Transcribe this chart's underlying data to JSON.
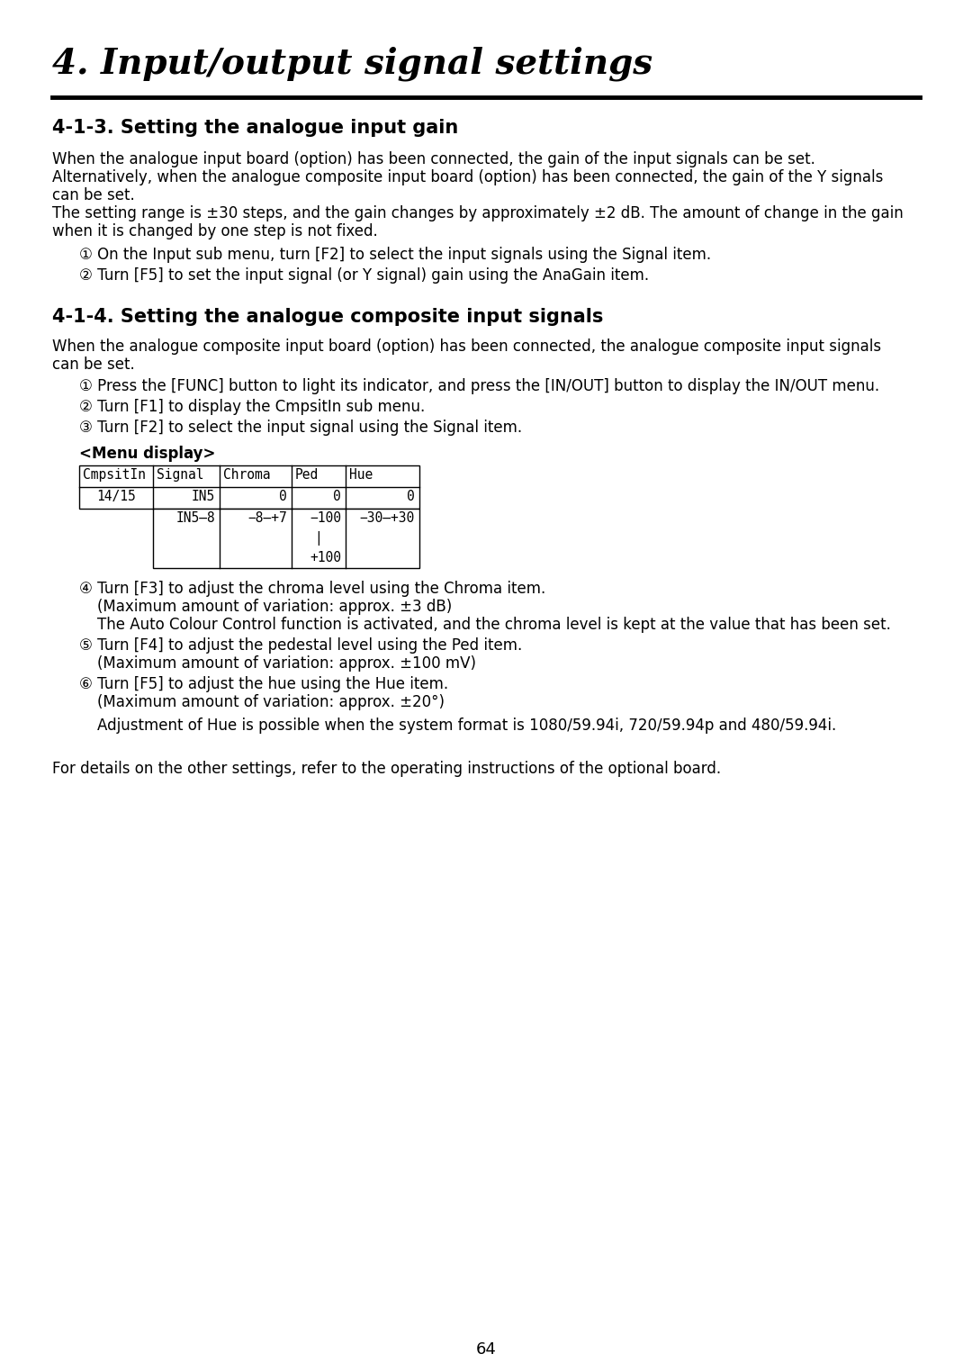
{
  "page_number": "64",
  "chapter_title": "4. Input/output signal settings",
  "background_color": "#ffffff",
  "text_color": "#000000",
  "section1_title": "4-1-3. Setting the analogue input gain",
  "section1_body": [
    "When the analogue input board (option) has been connected, the gain of the input signals can be set.",
    "Alternatively, when the analogue composite input board (option) has been connected, the gain of the Y signals",
    "can be set.",
    "The setting range is ±30 steps, and the gain changes by approximately ±2 dB. The amount of change in the gain",
    "when it is changed by one step is not fixed."
  ],
  "section1_steps": [
    "① On the Input sub menu, turn [F2] to select the input signals using the Signal item.",
    "② Turn [F5] to set the input signal (or Y signal) gain using the AnaGain item."
  ],
  "section2_title": "4-1-4. Setting the analogue composite input signals",
  "section2_body": [
    "When the analogue composite input board (option) has been connected, the analogue composite input signals",
    "can be set."
  ],
  "section2_steps123": [
    "① Press the [FUNC] button to light its indicator, and press the [IN/OUT] button to display the IN/OUT menu.",
    "② Turn [F1] to display the CmpsitIn sub menu.",
    "③ Turn [F2] to select the input signal using the Signal item."
  ],
  "menu_display_label": "<Menu display>",
  "table_headers": [
    "CmpsitIn",
    "Signal",
    "Chroma",
    "Ped",
    "Hue"
  ],
  "table_row2": [
    "14/15",
    "IN5",
    "0",
    "0",
    "0"
  ],
  "sub_table_row1": [
    "IN5–8",
    "−8–+7",
    "−100",
    "−30–+30"
  ],
  "sub_table_middle": [
    "|",
    "+100"
  ],
  "section2_steps456": [
    [
      "④ Turn [F3] to adjust the chroma level using the Chroma item.",
      "(Maximum amount of variation: approx. ±3 dB)",
      "The Auto Colour Control function is activated, and the chroma level is kept at the value that has been set."
    ],
    [
      "⑤ Turn [F4] to adjust the pedestal level using the Ped item.",
      "(Maximum amount of variation: approx. ±100 mV)"
    ],
    [
      "⑥ Turn [F5] to adjust the hue using the Hue item.",
      "(Maximum amount of variation: approx. ±20°)"
    ]
  ],
  "adjustment_note": "Adjustment of Hue is possible when the system format is 1080/59.94i, 720/59.94p and 480/59.94i.",
  "final_note": "For details on the other settings, refer to the operating instructions of the optional board."
}
